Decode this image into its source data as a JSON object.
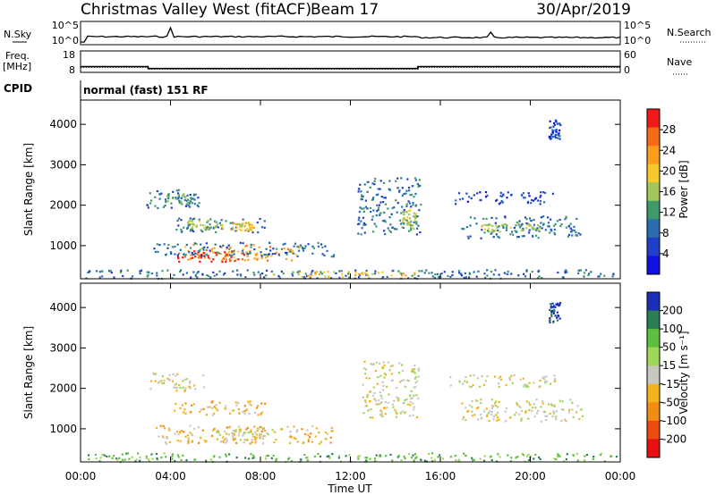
{
  "header": {
    "title": "Christmas Valley West (fitACF)",
    "beam": "Beam 17",
    "date": "30/Apr/2019"
  },
  "side_labels": {
    "nsky": "N.Sky",
    "freq_line1": "Freq.",
    "freq_line2": "[MHz]",
    "cpid": "CPID",
    "nsearch": "N.Search",
    "nave": "Nave"
  },
  "noise_panel": {
    "yticks_left": [
      "10^5",
      "10^0"
    ],
    "yticks_right": [
      "10^5",
      "10^0"
    ]
  },
  "freq_panel": {
    "yticks_left": [
      "18",
      "8"
    ],
    "yticks_right": [
      "60",
      "0"
    ],
    "freq_mhz": [
      {
        "t0": 0,
        "t1": 3,
        "v": 10.7
      },
      {
        "t0": 3,
        "t1": 15,
        "v": 9.8
      },
      {
        "t0": 15,
        "t1": 24,
        "v": 10.7
      }
    ],
    "nave": [
      {
        "t0": 0,
        "t1": 3,
        "v": 14
      },
      {
        "t0": 3,
        "t1": 15,
        "v": 9
      },
      {
        "t0": 15,
        "t1": 24,
        "v": 14
      }
    ]
  },
  "cpid_text": "normal (fast) 151 RF",
  "chart_data": [
    {
      "type": "heatmap",
      "name": "Power",
      "ylabel": "Slant Range [km]",
      "yticks": [
        "4000",
        "3000",
        "2000",
        "1000"
      ],
      "ylim": [
        180,
        4600
      ],
      "xlim": [
        0,
        24
      ],
      "colorbar": {
        "label": "Power [dB]",
        "ticks": [
          "28",
          "24",
          "20",
          "16",
          "12",
          "8",
          "4"
        ],
        "colors": [
          "#f01a1a",
          "#f76a16",
          "#fb9c1a",
          "#f7c92a",
          "#a3c55a",
          "#3f9a6b",
          "#2a6db0",
          "#1f3fc8",
          "#1010e0"
        ]
      },
      "regions": [
        {
          "t0": 4.6,
          "t1": 9.8,
          "r0": 650,
          "r1": 1050,
          "c": 2
        },
        {
          "t0": 4.3,
          "t1": 7.3,
          "r0": 620,
          "r1": 900,
          "c": 0
        },
        {
          "t0": 3.2,
          "t1": 11.3,
          "r0": 750,
          "r1": 1100,
          "c": 6
        },
        {
          "t0": 2.9,
          "t1": 5.3,
          "r0": 1950,
          "r1": 2400,
          "c": 6
        },
        {
          "t0": 3.6,
          "t1": 4.9,
          "r0": 2050,
          "r1": 2300,
          "c": 5
        },
        {
          "t0": 4.2,
          "t1": 8.2,
          "r0": 1350,
          "r1": 1700,
          "c": 6
        },
        {
          "t0": 4.7,
          "t1": 6.3,
          "r0": 1400,
          "r1": 1650,
          "c": 4
        },
        {
          "t0": 6.7,
          "t1": 7.7,
          "r0": 1380,
          "r1": 1600,
          "c": 3
        },
        {
          "t0": 12.3,
          "t1": 15.1,
          "r0": 1300,
          "r1": 2700,
          "c": 6
        },
        {
          "t0": 14.2,
          "t1": 14.9,
          "r0": 1400,
          "r1": 1900,
          "c": 4
        },
        {
          "t0": 16.9,
          "t1": 22.3,
          "r0": 1200,
          "r1": 1750,
          "c": 6
        },
        {
          "t0": 17.7,
          "t1": 20.4,
          "r0": 1350,
          "r1": 1600,
          "c": 4
        },
        {
          "t0": 16.4,
          "t1": 21.1,
          "r0": 2050,
          "r1": 2350,
          "c": 7
        },
        {
          "t0": 20.8,
          "t1": 21.3,
          "r0": 3650,
          "r1": 4150,
          "c": 7
        },
        {
          "t0": 0.2,
          "t1": 23.8,
          "r0": 200,
          "r1": 420,
          "c": 6
        },
        {
          "t0": 8.5,
          "t1": 15.0,
          "r0": 250,
          "r1": 380,
          "c": 3
        }
      ]
    },
    {
      "type": "heatmap",
      "name": "Velocity",
      "ylabel": "Slant Range [km]",
      "yticks": [
        "4000",
        "3000",
        "2000",
        "1000"
      ],
      "ylim": [
        180,
        4600
      ],
      "xlim": [
        0,
        24
      ],
      "xticks": [
        "00:00",
        "04:00",
        "08:00",
        "12:00",
        "16:00",
        "20:00",
        "00:00"
      ],
      "xlabel": "Time UT",
      "colorbar": {
        "label": "Velocity [m s⁻¹]",
        "ticks": [
          "200",
          "100",
          "50",
          "15",
          "-15",
          "-50",
          "-100",
          "-200"
        ],
        "colors": [
          "#1a2fb5",
          "#2a7f55",
          "#5fbf3f",
          "#9ed85a",
          "#c8c8c0",
          "#f5b31a",
          "#f08c10",
          "#f04a10",
          "#e81010"
        ]
      },
      "regions": [
        {
          "t0": 3.3,
          "t1": 11.2,
          "r0": 650,
          "r1": 1100,
          "c": 5
        },
        {
          "t0": 6.0,
          "t1": 8.5,
          "r0": 700,
          "r1": 1050,
          "c": 4
        },
        {
          "t0": 3.0,
          "t1": 5.5,
          "r0": 1950,
          "r1": 2400,
          "c": 4
        },
        {
          "t0": 4.1,
          "t1": 8.2,
          "r0": 1350,
          "r1": 1700,
          "c": 5
        },
        {
          "t0": 12.5,
          "t1": 15.0,
          "r0": 1300,
          "r1": 2700,
          "c": 4
        },
        {
          "t0": 16.8,
          "t1": 22.3,
          "r0": 1200,
          "r1": 1750,
          "c": 4
        },
        {
          "t0": 16.4,
          "t1": 21.1,
          "r0": 2050,
          "r1": 2350,
          "c": 4
        },
        {
          "t0": 20.8,
          "t1": 21.3,
          "r0": 3650,
          "r1": 4150,
          "c": 0
        },
        {
          "t0": 0.2,
          "t1": 23.8,
          "r0": 200,
          "r1": 420,
          "c": 2
        }
      ]
    }
  ]
}
